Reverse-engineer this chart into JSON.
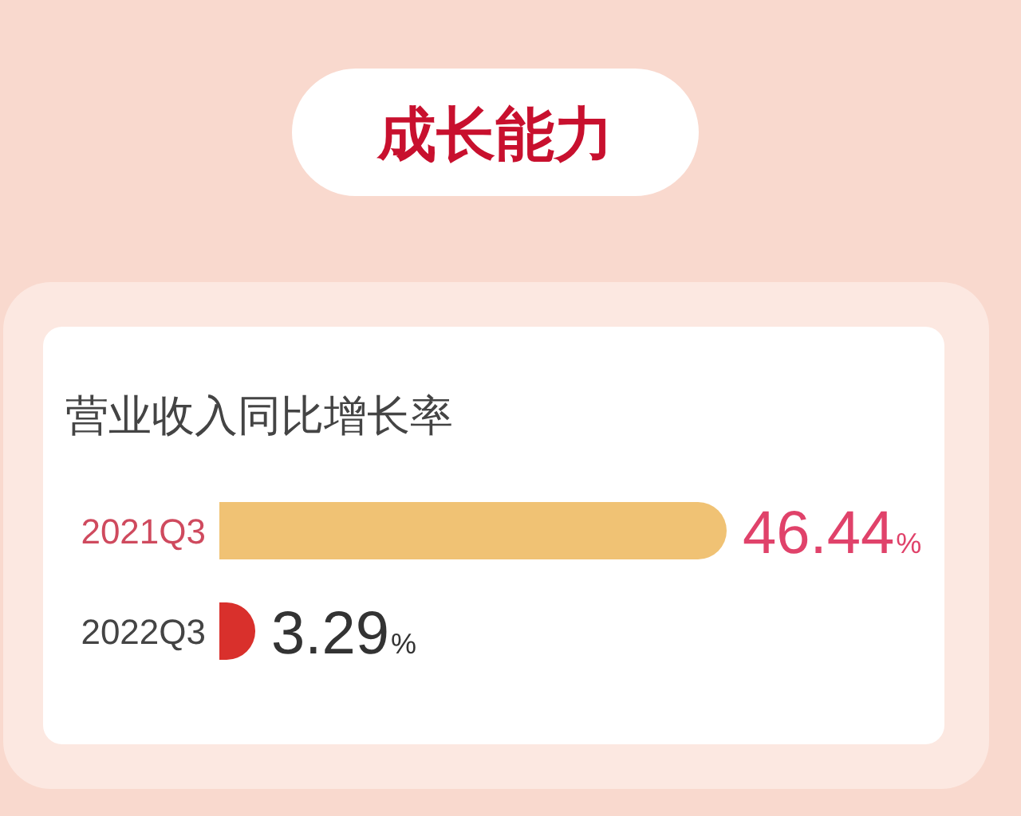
{
  "chart_data": {
    "type": "bar",
    "orientation": "horizontal",
    "title": "成长能力",
    "subtitle": "营业收入同比增长率",
    "categories": [
      "2021Q3",
      "2022Q3"
    ],
    "values": [
      46.44,
      3.29
    ],
    "colors": [
      "#f0c274",
      "#d9302c"
    ],
    "value_labels": [
      "46.44%",
      "3.29%"
    ]
  }
}
